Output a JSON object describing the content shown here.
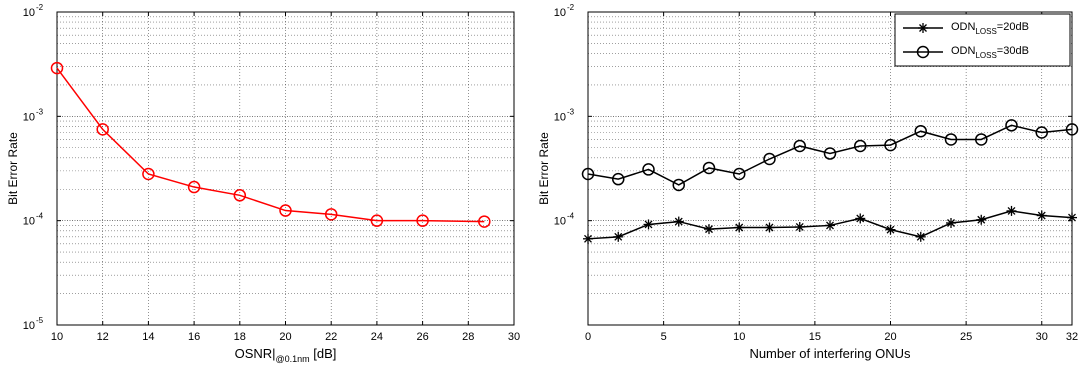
{
  "chart_data": [
    {
      "type": "line",
      "title": "",
      "xlabel": "OSNR|",
      "xlabel_sub": "@0.1nm",
      "xlabel_suffix": " [dB]",
      "ylabel": "Bit Error Rate",
      "xlim": [
        10,
        30
      ],
      "ylim": [
        1e-05,
        0.01
      ],
      "yscale": "log",
      "grid": true,
      "x_ticks": [
        10,
        12,
        14,
        16,
        18,
        20,
        22,
        24,
        26,
        28,
        30
      ],
      "x_tick_labels": [
        "10",
        "12",
        "14",
        "16",
        "18",
        "20",
        "22",
        "24",
        "26",
        "28",
        "30"
      ],
      "y_tick_labels": [
        {
          "base": "10",
          "exp": "-5"
        },
        {
          "base": "10",
          "exp": "-4"
        },
        {
          "base": "10",
          "exp": "-3"
        },
        {
          "base": "10",
          "exp": "-2"
        }
      ],
      "color": "#ff0000",
      "series": [
        {
          "marker": "circle",
          "x": [
            10,
            12,
            14,
            16,
            18,
            20,
            22,
            24,
            26,
            28.7
          ],
          "values": [
            0.0029,
            0.00075,
            0.00028,
            0.00021,
            0.000175,
            0.000125,
            0.000115,
            0.0001,
            0.0001,
            9.8e-05
          ]
        }
      ]
    },
    {
      "type": "line",
      "title": "",
      "xlabel": "Number of interfering ONUs",
      "ylabel": "Bit Error Rate",
      "xlim": [
        0,
        32
      ],
      "ylim": [
        1e-05,
        0.01
      ],
      "yscale": "log",
      "grid": true,
      "x_ticks": [
        0,
        5,
        10,
        15,
        20,
        25,
        30,
        32
      ],
      "x_tick_labels": [
        "0",
        "5",
        "10",
        "15",
        "20",
        "25",
        "30",
        "32"
      ],
      "y_tick_labels": [
        {
          "base": "10",
          "exp": "-4"
        },
        {
          "base": "10",
          "exp": "-3"
        },
        {
          "base": "10",
          "exp": "-2"
        }
      ],
      "legend_position": "top-right",
      "color": "#000000",
      "series": [
        {
          "name_main": "ODN",
          "name_sub": "LOSS",
          "name_suffix": "=20dB",
          "marker": "star",
          "x": [
            0,
            2,
            4,
            6,
            8,
            10,
            12,
            14,
            16,
            18,
            20,
            22,
            24,
            26,
            28,
            30,
            32
          ],
          "values": [
            6.7e-05,
            7e-05,
            9.2e-05,
            9.8e-05,
            8.3e-05,
            8.6e-05,
            8.6e-05,
            8.7e-05,
            9e-05,
            0.000105,
            8.2e-05,
            7e-05,
            9.5e-05,
            0.000102,
            0.000124,
            0.000112,
            0.000107
          ]
        },
        {
          "name_main": "ODN",
          "name_sub": "LOSS",
          "name_suffix": "=30dB",
          "marker": "circle",
          "x": [
            0,
            2,
            4,
            6,
            8,
            10,
            12,
            14,
            16,
            18,
            20,
            22,
            24,
            26,
            28,
            30,
            32
          ],
          "values": [
            0.00028,
            0.00025,
            0.00031,
            0.00022,
            0.00032,
            0.00028,
            0.00039,
            0.00052,
            0.00044,
            0.00052,
            0.00053,
            0.00072,
            0.0006,
            0.0006,
            0.00082,
            0.0007,
            0.00075
          ]
        }
      ]
    }
  ]
}
